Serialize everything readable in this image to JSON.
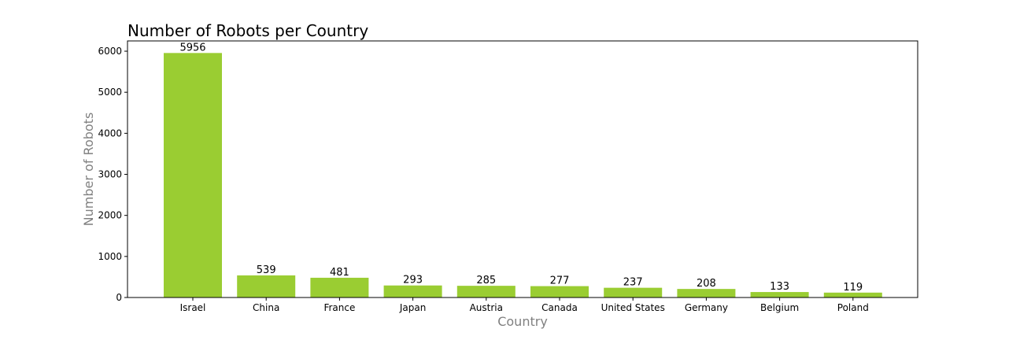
{
  "chart_data": {
    "type": "bar",
    "title": "Number of Robots per Country",
    "xlabel": "Country",
    "ylabel": "Number of Robots",
    "categories": [
      "Israel",
      "China",
      "France",
      "Japan",
      "Austria",
      "Canada",
      "United States",
      "Germany",
      "Belgium",
      "Poland"
    ],
    "values": [
      5956,
      539,
      481,
      293,
      285,
      277,
      237,
      208,
      133,
      119
    ],
    "ylim": [
      0,
      6250
    ],
    "yticks": [
      0,
      1000,
      2000,
      3000,
      4000,
      5000,
      6000
    ],
    "bar_color": "#9ACD32",
    "grid": false,
    "legend": "none"
  }
}
